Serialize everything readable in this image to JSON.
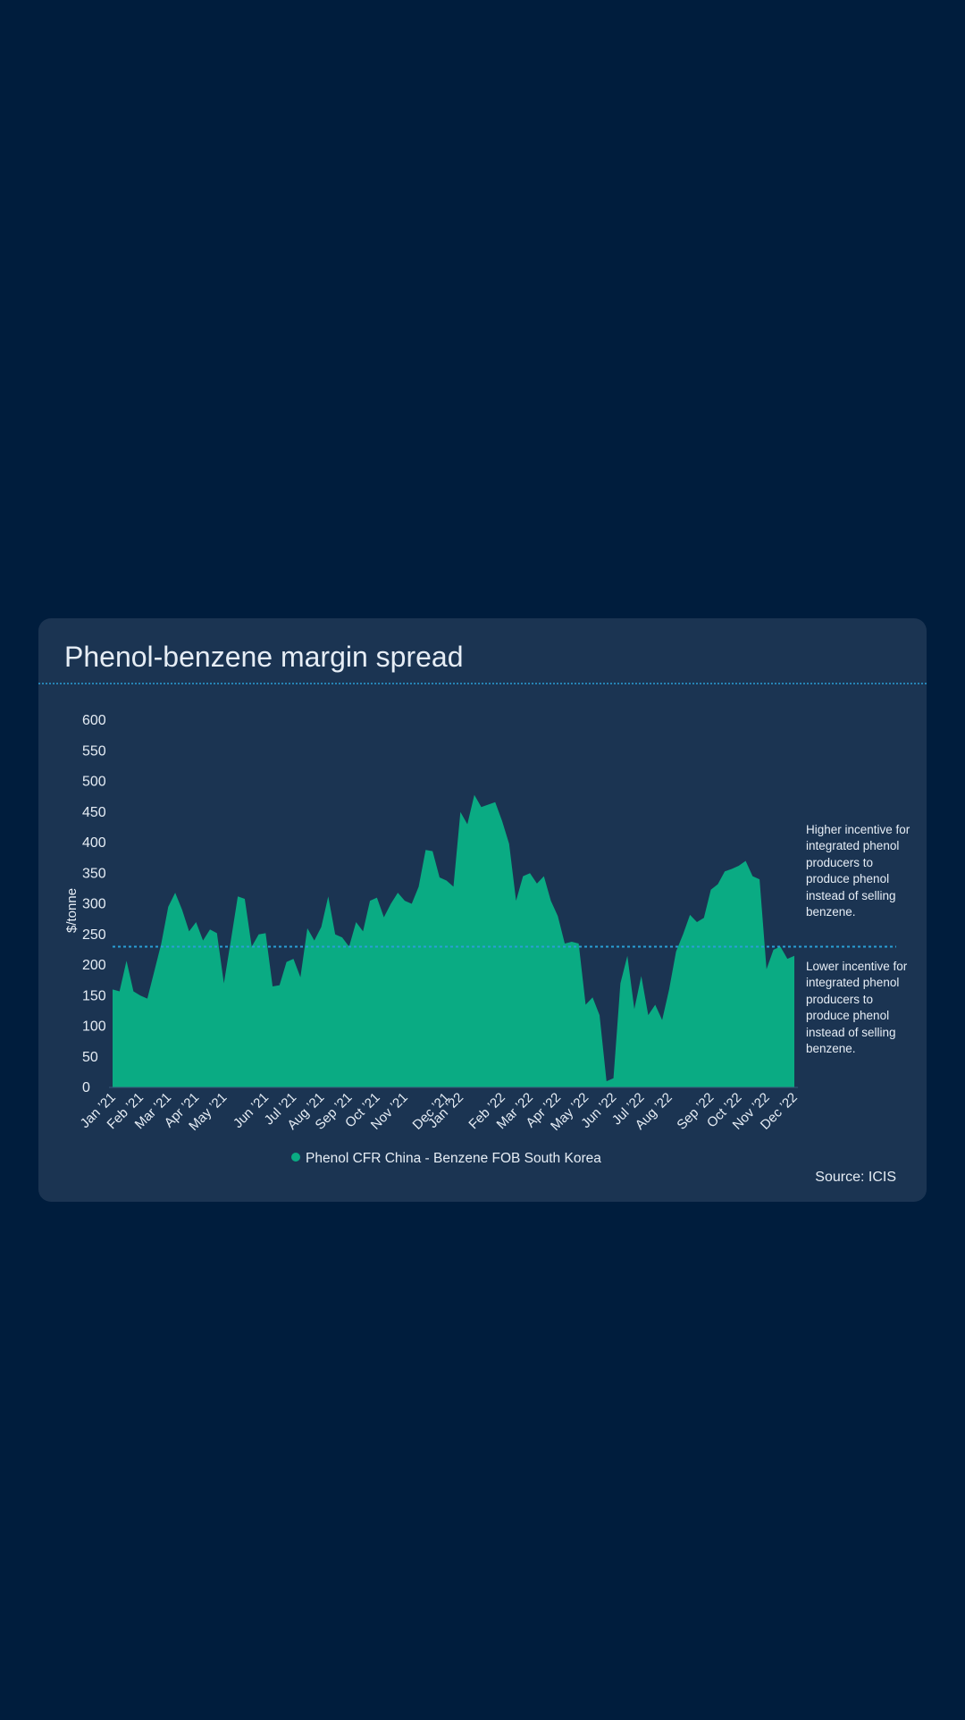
{
  "chart_data": {
    "type": "area",
    "title": "Phenol-benzene margin spread",
    "y_label": "$/tonne",
    "source": "Source: ICIS",
    "categories": [
      "Jan ’21",
      null,
      null,
      null,
      "Feb ’21",
      null,
      null,
      null,
      "Mar ’21",
      null,
      null,
      null,
      "Apr ’21",
      null,
      null,
      null,
      "May ’21",
      null,
      null,
      null,
      null,
      null,
      "Jun ’21",
      null,
      null,
      null,
      "Jul ’21",
      null,
      null,
      null,
      "Aug ’21",
      null,
      null,
      null,
      "Sep ’21",
      null,
      null,
      null,
      "Oct ’21",
      null,
      null,
      null,
      "Nov ’21",
      null,
      null,
      null,
      null,
      null,
      "Dec ’21",
      null,
      "Jan ’22",
      null,
      null,
      null,
      null,
      null,
      "Feb ’22",
      null,
      null,
      null,
      "Mar ’22",
      null,
      null,
      null,
      "Apr ’22",
      null,
      null,
      null,
      "May ’22",
      null,
      null,
      null,
      "Jun ’22",
      null,
      null,
      null,
      "Jul ’22",
      null,
      null,
      null,
      "Aug ’22",
      null,
      null,
      null,
      null,
      null,
      "Sep ’22",
      null,
      null,
      null,
      "Oct ’22",
      null,
      null,
      null,
      "Nov ’22",
      null,
      null,
      null,
      "Dec ’22"
    ],
    "series": [
      {
        "name": "Phenol CFR China - Benzene FOB South Korea",
        "color": "#0aab83",
        "values": [
          160,
          157,
          207,
          157,
          150,
          145,
          190,
          235,
          295,
          318,
          290,
          255,
          270,
          240,
          258,
          252,
          170,
          240,
          312,
          308,
          230,
          250,
          252,
          165,
          167,
          205,
          210,
          180,
          260,
          240,
          262,
          312,
          250,
          245,
          230,
          270,
          255,
          305,
          310,
          278,
          300,
          318,
          305,
          300,
          328,
          388,
          386,
          343,
          338,
          328,
          450,
          430,
          478,
          458,
          462,
          466,
          435,
          398,
          305,
          345,
          350,
          333,
          345,
          305,
          280,
          235,
          238,
          235,
          135,
          147,
          118,
          10,
          15,
          170,
          215,
          128,
          182,
          118,
          135,
          110,
          160,
          222,
          250,
          282,
          270,
          277,
          323,
          332,
          353,
          357,
          362,
          370,
          345,
          340,
          193,
          225,
          230,
          210,
          215
        ]
      }
    ],
    "reference_line": {
      "value": 230,
      "color": "#2a9fd6"
    },
    "annotations": [
      "Higher incentive for integrated phenol producers to produce phenol instead of selling benzene.",
      "Lower incentive for integrated phenol producers to produce phenol instead of selling benzene."
    ],
    "ylim": [
      0,
      600
    ],
    "yticks": [
      0,
      50,
      100,
      150,
      200,
      250,
      300,
      350,
      400,
      450,
      500,
      550,
      600
    ],
    "grid": false
  }
}
